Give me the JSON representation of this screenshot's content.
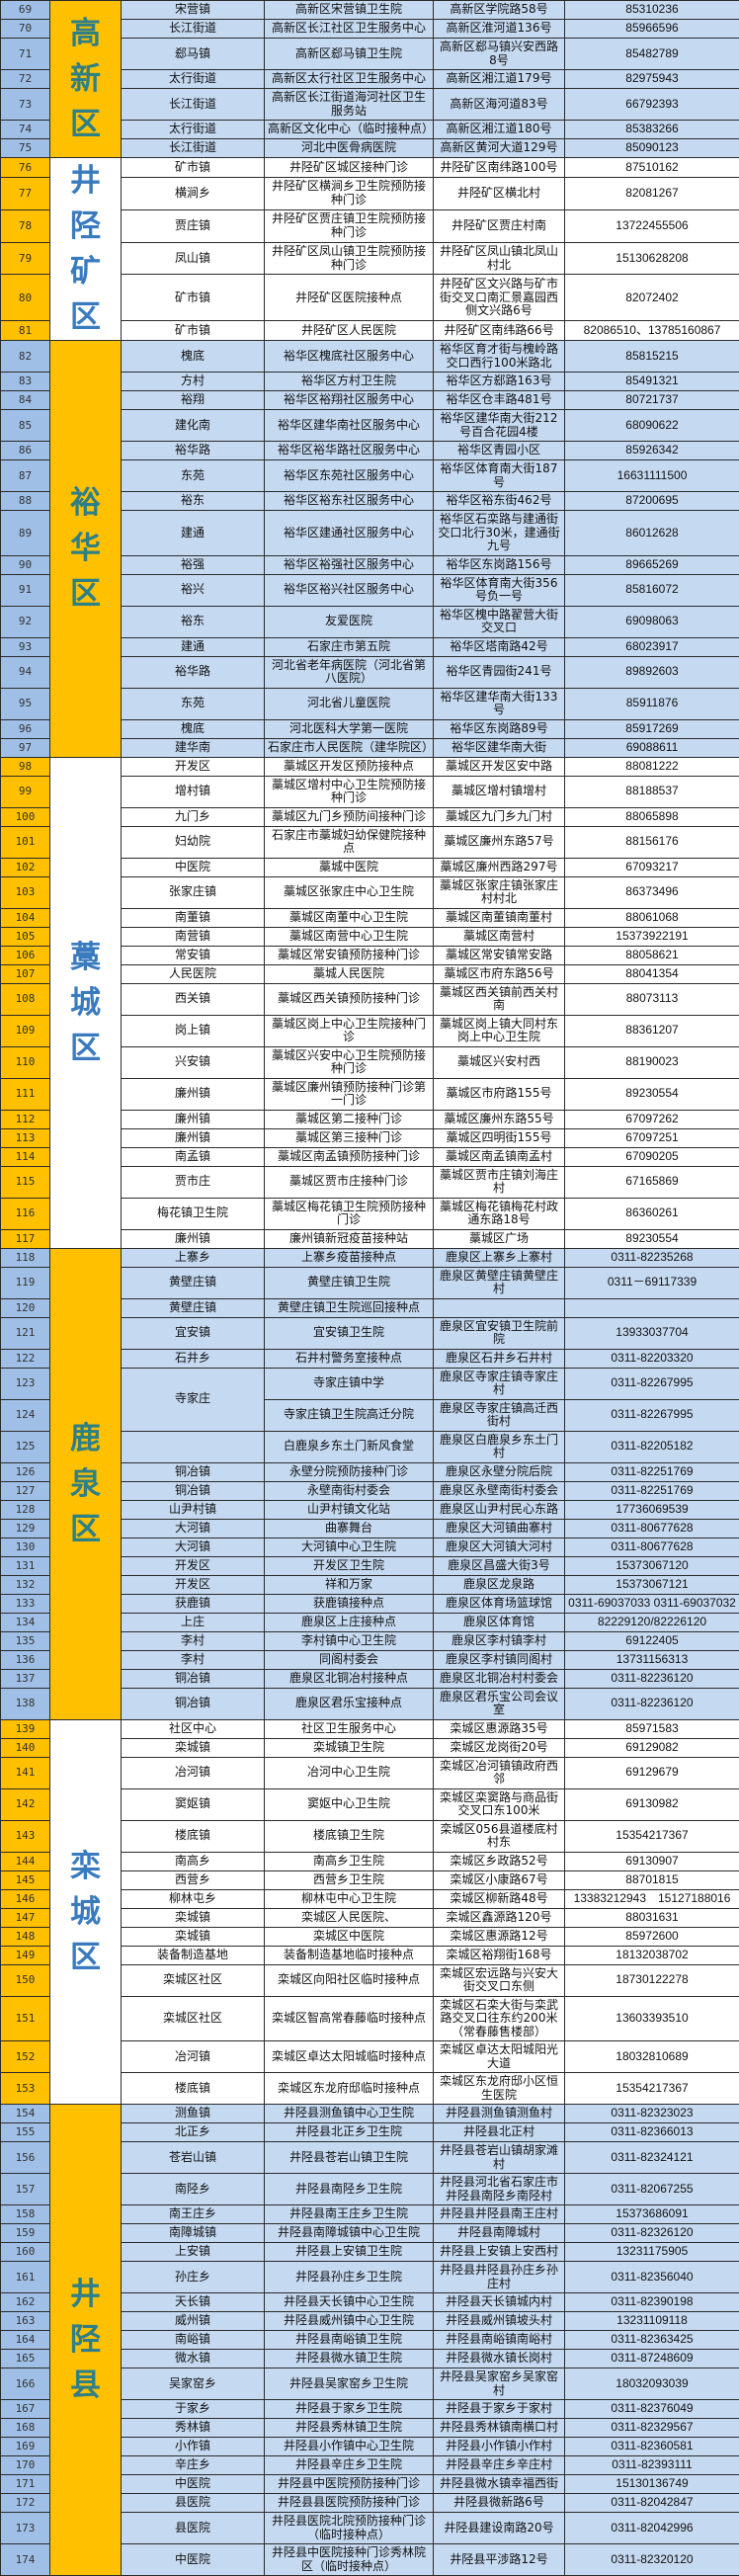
{
  "colors": {
    "blue_row": "#c5d9f1",
    "blue_number": "#9fbfe6",
    "yellow": "#ffc000",
    "white": "#ffffff",
    "district_text_on_yellow": "#2f7f86",
    "district_text_on_white": "#3a7bbf"
  },
  "districts": [
    {
      "name": "高新区",
      "style": "yellow",
      "rows": [
        [
          "69",
          "宋营镇",
          "高新区宋营镇卫生院",
          "高新区学院路58号",
          "85310236"
        ],
        [
          "70",
          "长江街道",
          "高新区长江社区卫生服务中心",
          "高新区淮河道136号",
          "85966596"
        ],
        [
          "71",
          "郄马镇",
          "高新区郄马镇卫生院",
          "高新区郄马镇兴安西路8号",
          "85482789"
        ],
        [
          "72",
          "太行街道",
          "高新区太行社区卫生服务中心",
          "高新区湘江道179号",
          "82975943"
        ],
        [
          "73",
          "长江街道",
          "高新区长江街道海河社区卫生服务站",
          "高新区海河道83号",
          "66792393"
        ],
        [
          "74",
          "太行街道",
          "高新区文化中心（临时接种点）",
          "高新区湘江道180号",
          "85383266"
        ],
        [
          "75",
          "长江街道",
          "河北中医骨病医院",
          "高新区黄河大道129号",
          "85090123"
        ]
      ]
    },
    {
      "name": "井陉矿区",
      "style": "plain",
      "rows": [
        [
          "76",
          "矿市镇",
          "井陉矿区城区接种门诊",
          "井陉矿区南纬路100号",
          "87510162"
        ],
        [
          "77",
          "横涧乡",
          "井陉矿区横涧乡卫生院预防接种门诊",
          "井陉矿区横北村",
          "82081267"
        ],
        [
          "78",
          "贾庄镇",
          "井陉矿区贾庄镇卫生院预防接种门诊",
          "井陉矿区贾庄村南",
          "13722455506"
        ],
        [
          "79",
          "凤山镇",
          "井陉矿区凤山镇卫生院预防接种门诊",
          "井陉矿区凤山镇北凤山村北",
          "15130628208"
        ],
        [
          "80",
          "矿市镇",
          "井陉矿区医院接种点",
          "井陉矿区文兴路与矿市街交叉口南汇景嘉园西侧文兴路6号",
          "82072402"
        ],
        [
          "81",
          "矿市镇",
          "井陉矿区人民医院",
          "井陉矿区南纬路66号",
          "82086510、13785160867"
        ]
      ]
    },
    {
      "name": "裕华区",
      "style": "yellow",
      "rows": [
        [
          "82",
          "槐底",
          "裕华区槐底社区服务中心",
          "裕华区育才街与槐岭路交口西行100米路北",
          "85815215"
        ],
        [
          "83",
          "方村",
          "裕华区方村卫生院",
          "裕华区方郄路163号",
          "85491321"
        ],
        [
          "84",
          "裕翔",
          "裕华区裕翔社区服务中心",
          "裕华区仓丰路481号",
          "80721737"
        ],
        [
          "85",
          "建化南",
          "裕华区建华南社区服务中心",
          "裕华区建华南大街212号百合花园4楼",
          "68090622"
        ],
        [
          "86",
          "裕华路",
          "裕华区裕华路社区服务中心",
          "裕华区青园小区",
          "85926342"
        ],
        [
          "87",
          "东苑",
          "裕华区东苑社区服务中心",
          "裕华区体育南大街187号",
          "16631111500"
        ],
        [
          "88",
          "裕东",
          "裕华区裕东社区服务中心",
          "裕华区裕东街462号",
          "87200695"
        ],
        [
          "89",
          "建通",
          "裕华区建通社区服务中心",
          "裕华区石栾路与建通街交口北行30米，建通街九号",
          "86012628"
        ],
        [
          "90",
          "裕强",
          "裕华区裕强社区服务中心",
          "裕华区东岗路156号",
          "89665269"
        ],
        [
          "91",
          "裕兴",
          "裕华区裕兴社区服务中心",
          "裕华区体育南大街356号负一号",
          "85816072"
        ],
        [
          "92",
          "裕东",
          "友爱医院",
          "裕华区槐中路翟营大街交叉口",
          "69098063"
        ],
        [
          "93",
          "建通",
          "石家庄市第五院",
          "裕华区塔南路42号",
          "68023917"
        ],
        [
          "94",
          "裕华路",
          "河北省老年病医院（河北省第八医院）",
          "裕华区青园街241号",
          "89892603"
        ],
        [
          "95",
          "东苑",
          "河北省儿童医院",
          "裕华区建华南大街133号",
          "85911876"
        ],
        [
          "96",
          "槐底",
          "河北医科大学第一医院",
          "裕华区东岗路89号",
          "85917269"
        ],
        [
          "97",
          "建华南",
          "石家庄市人民医院（建华院区）",
          "裕华区建华南大街",
          "69088611"
        ]
      ]
    },
    {
      "name": "藁城区",
      "style": "plain",
      "rows": [
        [
          "98",
          "开发区",
          "藁城区开发区预防接种点",
          "藁城区开发区安中路",
          "88081222"
        ],
        [
          "99",
          "增村镇",
          "藁城区增村中心卫生院预防接种门诊",
          "藁城区增村镇增村",
          "88188537"
        ],
        [
          "100",
          "九门乡",
          "藁城区九门乡预防间接种门诊",
          "藁城区九门乡九门村",
          "88065898"
        ],
        [
          "101",
          "妇幼院",
          "石家庄市藁城妇幼保健院接种点",
          "藁城区廉州东路57号",
          "88156176"
        ],
        [
          "102",
          "中医院",
          "藁城中医院",
          "藁城区廉州西路297号",
          "67093217"
        ],
        [
          "103",
          "张家庄镇",
          "藁城区张家庄中心卫生院",
          "藁城区张家庄镇张家庄村村北",
          "86373496"
        ],
        [
          "104",
          "南董镇",
          "藁城区南董中心卫生院",
          "藁城区南董镇南董村",
          "88061068"
        ],
        [
          "105",
          "南营镇",
          "藁城区南营中心卫生院",
          "藁城区南营村",
          "15373922191"
        ],
        [
          "106",
          "常安镇",
          "藁城区常安镇预防接种门诊",
          "藁城区常安镇常安路",
          "88058621"
        ],
        [
          "107",
          "人民医院",
          "藁城人民医院",
          "藁城区市府东路56号",
          "88041354"
        ],
        [
          "108",
          "西关镇",
          "藁城区西关镇预防接种门诊",
          "藁城区西关镇前西关村南",
          "88073113"
        ],
        [
          "109",
          "岗上镇",
          "藁城区岗上中心卫生院接种门诊",
          "藁城区岗上镇大同村东岗上中心卫生院",
          "88361207"
        ],
        [
          "110",
          "兴安镇",
          "藁城区兴安中心卫生院预防接种门诊",
          "藁城区兴安村西",
          "88190023"
        ],
        [
          "111",
          "廉州镇",
          "藁城区廉州镇预防接种门诊第一门诊",
          "藁城区市府路155号",
          "89230554"
        ],
        [
          "112",
          "廉州镇",
          "藁城区第二接种门诊",
          "藁城区廉州东路55号",
          "67097262"
        ],
        [
          "113",
          "廉州镇",
          "藁城区第三接种门诊",
          "藁城区四明街155号",
          "67097251"
        ],
        [
          "114",
          "南孟镇",
          "藁城区南孟镇预防接种门诊",
          "藁城区南孟镇南孟村",
          "67090205"
        ],
        [
          "115",
          "贾市庄",
          "藁城区贾市庄接种门诊",
          "藁城区贾市庄镇刘海庄村",
          "67165869"
        ],
        [
          "116",
          "梅花镇卫生院",
          "藁城区梅花镇卫生院预防接种门诊",
          "藁城区梅花镇梅花村政通东路18号",
          "86360261"
        ],
        [
          "117",
          "廉州镇",
          "廉州镇新冠疫苗接种站",
          "藁城区广场",
          "89230554"
        ]
      ]
    },
    {
      "name": "鹿泉区",
      "style": "yellow",
      "rows": [
        [
          "118",
          "上寨乡",
          "上寨乡疫苗接种点",
          "鹿泉区上寨乡上寨村",
          "0311-82235268"
        ],
        [
          "119",
          "黄壁庄镇",
          "黄壁庄镇卫生院",
          "鹿泉区黄壁庄镇黄壁庄村",
          "0311－69117339"
        ],
        [
          "120",
          "黄壁庄镇",
          "黄壁庄镇卫生院巡回接种点",
          "",
          ""
        ],
        [
          "121",
          "宜安镇",
          "宜安镇卫生院",
          "鹿泉区宜安镇卫生院前院",
          "13933037704"
        ],
        [
          "122",
          "石井乡",
          "石井村警务室接种点",
          "鹿泉区石井乡石井村",
          "0311-82203320"
        ],
        [
          "123",
          "寺家庄",
          "寺家庄镇中学",
          "鹿泉区寺家庄镇寺家庄村",
          "0311-82267995"
        ],
        [
          "124",
          null,
          "寺家庄镇卫生院高迁分院",
          "鹿泉区寺家庄镇高迁西街村",
          "0311-82267995"
        ],
        [
          "125",
          "",
          "白鹿泉乡东土门新风食堂",
          "鹿泉区白鹿泉乡东土门村",
          "0311-82205182"
        ],
        [
          "126",
          "铜冶镇",
          "永壁分院预防接种门诊",
          "鹿泉区永壁分院后院",
          "0311-82251769"
        ],
        [
          "127",
          "铜冶镇",
          "永壁南街村委会",
          "鹿泉区永壁南街村委会",
          "0311-82251769"
        ],
        [
          "128",
          "山尹村镇",
          "山尹村镇文化站",
          "鹿泉区山尹村民心东路",
          "17736069539"
        ],
        [
          "129",
          "大河镇",
          "曲寨舞台",
          "鹿泉区大河镇曲寨村",
          "0311-80677628"
        ],
        [
          "130",
          "大河镇",
          "大河镇中心卫生院",
          "鹿泉区大河镇大河村",
          "0311-80677628"
        ],
        [
          "131",
          "开发区",
          "开发区卫生院",
          "鹿泉区昌盛大街3号",
          "15373067120"
        ],
        [
          "132",
          "开发区",
          "祥和万家",
          "鹿泉区龙泉路",
          "15373067121"
        ],
        [
          "133",
          "获鹿镇",
          "获鹿镇接种点",
          "鹿泉区体育场篮球馆",
          "0311-69037033 0311-69037032"
        ],
        [
          "134",
          "上庄",
          "鹿泉区上庄接种点",
          "鹿泉区体育馆",
          "82229120/82226120"
        ],
        [
          "135",
          "李村",
          "李村镇中心卫生院",
          "鹿泉区李村镇李村",
          "69122405"
        ],
        [
          "136",
          "李村",
          "同阁村委会",
          "鹿泉区李村镇同阁村",
          "13731156313"
        ],
        [
          "137",
          "铜冶镇",
          "鹿泉区北铜冶村接种点",
          "鹿泉区北铜冶村村委会",
          "0311-82236120"
        ],
        [
          "138",
          "铜冶镇",
          "鹿泉区君乐宝接种点",
          "鹿泉区君乐宝公司会议室",
          "0311-82236120"
        ]
      ]
    },
    {
      "name": "栾城区",
      "style": "plain",
      "rows": [
        [
          "139",
          "社区中心",
          "社区卫生服务中心",
          "栾城区惠源路35号",
          "85971583"
        ],
        [
          "140",
          "栾城镇",
          "栾城镇卫生院",
          "栾城区龙岗街20号",
          "69129082"
        ],
        [
          "141",
          "冶河镇",
          "冶河中心卫生院",
          "栾城区冶河镇镇政府西邻",
          "69129679"
        ],
        [
          "142",
          "窦妪镇",
          "窦妪中心卫生院",
          "栾城区栾窦路与商品街交叉口东100米",
          "69130982"
        ],
        [
          "143",
          "楼底镇",
          "楼底镇卫生院",
          "栾城区056县道楼底村村东",
          "15354217367"
        ],
        [
          "144",
          "南高乡",
          "南高乡卫生院",
          "栾城区乡政路52号",
          "69130907"
        ],
        [
          "145",
          "西营乡",
          "西营乡卫生院",
          "栾城区小康路67号",
          "88701815"
        ],
        [
          "146",
          "柳林屯乡",
          "柳林屯中心卫生院",
          "栾城区柳新路48号",
          "13383212943　15127188016"
        ],
        [
          "147",
          "栾城镇",
          "栾城区人民医院、",
          "栾城区鑫源路120号",
          "88031631"
        ],
        [
          "148",
          "栾城镇",
          "栾城区中医院",
          "栾城区惠源路12号",
          "85972600"
        ],
        [
          "149",
          "装备制造基地",
          "装备制造基地临时接种点",
          "栾城区裕翔街168号",
          "18132038702"
        ],
        [
          "150",
          "栾城区社区",
          "栾城区向阳社区临时接种点",
          "栾城区宏远路与兴安大街交叉口东侧",
          "18730122278"
        ],
        [
          "151",
          "栾城区社区",
          "栾城区智高常春藤临时接种点",
          "栾城区石栾大街与栾武路交叉口往东约200米（常春藤售楼部）",
          "13603393510"
        ],
        [
          "152",
          "冶河镇",
          "栾城区卓达太阳城临时接种点",
          "栾城区卓达太阳城阳光大道",
          "18032810689"
        ],
        [
          "153",
          "楼底镇",
          "栾城区东龙府邸临时接种点",
          "栾城区东龙府邸小区恒生医院",
          "15354217367"
        ]
      ]
    },
    {
      "name": "井陉县",
      "style": "yellow",
      "rows": [
        [
          "154",
          "测鱼镇",
          "井陉县测鱼镇中心卫生院",
          "井陉县测鱼镇测鱼村",
          "0311-82323023"
        ],
        [
          "155",
          "北正乡",
          "井陉县北正乡卫生院",
          "井陉县北正村",
          "0311-82366013"
        ],
        [
          "156",
          "苍岩山镇",
          "井陉县苍岩山镇卫生院",
          "井陉县苍岩山镇胡家滩村",
          "0311-82324121"
        ],
        [
          "157",
          "南陉乡",
          "井陉县南陉乡卫生院",
          "井陉县河北省石家庄市井陉县南陉乡南陉村",
          "0311-82067255"
        ],
        [
          "158",
          "南王庄乡",
          "井陉县南王庄乡卫生院",
          "井陉县井陉县南王庄村",
          "15373686091"
        ],
        [
          "159",
          "南障城镇",
          "井陉县南障城镇中心卫生院",
          "井陉县南障城村",
          "0311-82326120"
        ],
        [
          "160",
          "上安镇",
          "井陉县上安镇卫生院",
          "井陉县上安镇上安西村",
          "13231175905"
        ],
        [
          "161",
          "孙庄乡",
          "井陉县孙庄乡卫生院",
          "井陉县井陉县孙庄乡孙庄村",
          "0311-82356040"
        ],
        [
          "162",
          "天长镇",
          "井陉县天长镇中心卫生院",
          "井陉县天长镇城内村",
          "0311-82390198"
        ],
        [
          "163",
          "威州镇",
          "井陉县威州镇中心卫生院",
          "井陉县威州镇坡头村",
          "13231109118"
        ],
        [
          "164",
          "南峪镇",
          "井陉县南峪镇卫生院",
          "井陉县南峪镇南峪村",
          "0311-82363425"
        ],
        [
          "165",
          "微水镇",
          "井陉县微水镇卫生院",
          "井陉县微水镇长岗村",
          "0311-87248609"
        ],
        [
          "166",
          "吴家窑乡",
          "井陉县吴家窑乡卫生院",
          "井陉县吴家窑乡吴家窑村",
          "18032093039"
        ],
        [
          "167",
          "于家乡",
          "井陉县于家乡卫生院",
          "井陉县于家乡于家村",
          "0311-82376049"
        ],
        [
          "168",
          "秀林镇",
          "井陉县秀林镇卫生院",
          "井陉县秀林镇南横口村",
          "0311-82329567"
        ],
        [
          "169",
          "小作镇",
          "井陉县小作镇中心卫生院",
          "井陉县小作镇小作村",
          "0311-82360581"
        ],
        [
          "170",
          "辛庄乡",
          "井陉县辛庄乡卫生院",
          "井陉县辛庄乡辛庄村",
          "0311-82393111"
        ],
        [
          "171",
          "中医院",
          "井陉县中医院预防接种门诊",
          "井陉县微水镇幸福西街",
          "15130136749"
        ],
        [
          "172",
          "县医院",
          "井陉县县医院预防接种门诊",
          "井陉县微新路6号",
          "0311-82042847"
        ],
        [
          "173",
          "县医院",
          "井陉县医院北院预防接种门诊（临时接种点）",
          "井陉县建设南路20号",
          "0311-82042996"
        ],
        [
          "174",
          "中医院",
          "井陉县中医院接种门诊秀林院区（临时接种点）",
          "井陉县平涉路12号",
          "0311-82320120"
        ]
      ]
    }
  ]
}
